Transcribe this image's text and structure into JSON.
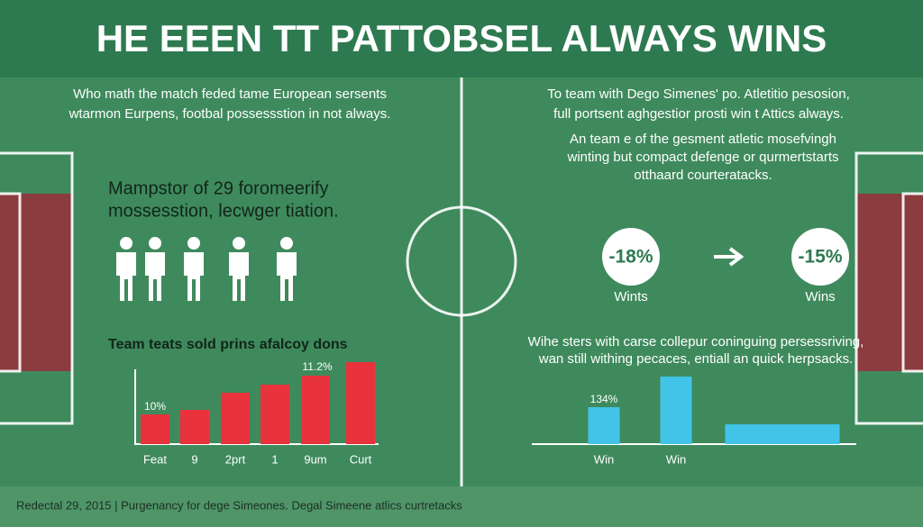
{
  "header": {
    "title": "HE EEEN TT PATTOBSEL ALWAYS WINS"
  },
  "left": {
    "intro": [
      "Who math the match feded tame European sersents",
      "wtarmon Eurpens, footbal possessstion in not always."
    ],
    "heading": [
      "Mampstor of 29 foromeerify",
      "mossesstion, lecwger tiation."
    ]
  },
  "right": {
    "intro": [
      "To team with Dego Simenes' po. Atletitio pesosion,",
      "full portsent aghgestior prosti win t Attics always."
    ],
    "paragraph": [
      "An team e of the gesment atletic mosefvingh",
      "winting but compact defenge or qurmertstarts",
      "otthaard courteratacks."
    ],
    "stats": [
      {
        "value": "-18%",
        "label": "Wints"
      },
      {
        "value": "-15%",
        "label": "Wins"
      }
    ],
    "note": [
      "Wihe sters with carse collepur coninguing persessriving,",
      "wan still withing pecaces, entiall an quick herpsacks."
    ]
  },
  "chart_data": [
    {
      "type": "bar",
      "title": "Team teats sold prins afalcoy dons",
      "categories": [
        "Feat",
        "9",
        "2prt",
        "1",
        "9um",
        "Curt"
      ],
      "values": [
        33,
        38,
        57,
        66,
        76,
        91
      ],
      "color": "#e8323c",
      "ylim": [
        0,
        100
      ],
      "annotations": [
        "10%",
        "11.2%"
      ]
    },
    {
      "type": "bar",
      "categories": [
        "Win",
        "Win",
        null
      ],
      "values": [
        41,
        75,
        22
      ],
      "color": "#41c4e8",
      "ylim": [
        0,
        100
      ],
      "annotations": [
        "134%"
      ]
    }
  ],
  "footer": "Redectal 29, 2015 | Purgenancy for dege Simeones. Degal Simeene atlics curtretacks"
}
